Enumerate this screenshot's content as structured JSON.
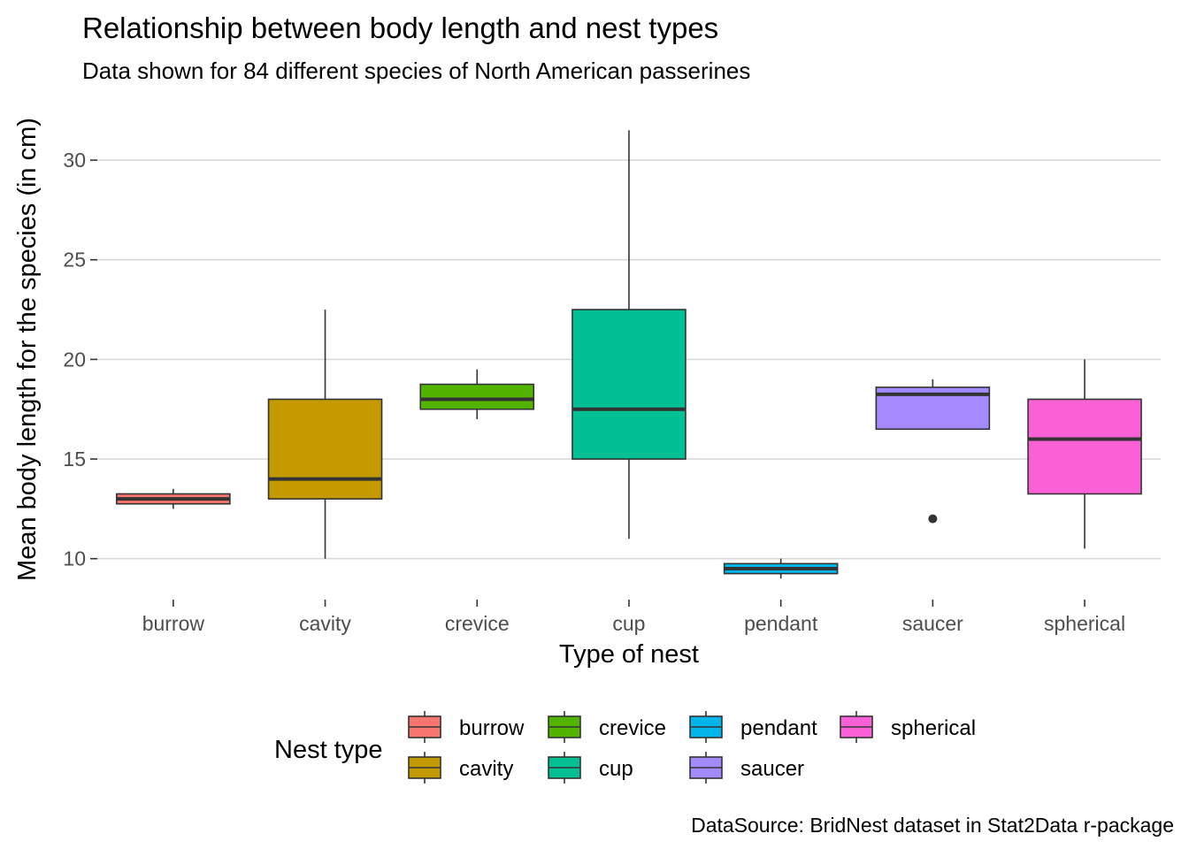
{
  "chart_data": {
    "type": "boxplot",
    "title": "Relationship between body length and nest types",
    "subtitle": "Data shown for 84 different species of North American passerines",
    "xlabel": "Type of nest",
    "ylabel": "Mean body length for the species (in cm)",
    "caption": "DataSource: BridNest dataset in Stat2Data r-package",
    "ylim": [
      8.3,
      32.8
    ],
    "yticks": [
      "10",
      "15",
      "20",
      "25",
      "30"
    ],
    "grid": "horizontal",
    "legend": {
      "title": "Nest type",
      "position": "bottom"
    },
    "categories": [
      "burrow",
      "cavity",
      "crevice",
      "cup",
      "pendant",
      "saucer",
      "spherical"
    ],
    "boxes": [
      {
        "category": "burrow",
        "min": 12.5,
        "q1": 12.75,
        "median": 13.0,
        "q3": 13.25,
        "max": 13.5,
        "outliers": [],
        "color": "#F8766D"
      },
      {
        "category": "cavity",
        "min": 10.0,
        "q1": 13.0,
        "median": 14.0,
        "q3": 18.0,
        "max": 22.5,
        "outliers": [],
        "color": "#C49A00"
      },
      {
        "category": "crevice",
        "min": 17.0,
        "q1": 17.5,
        "median": 18.0,
        "q3": 18.75,
        "max": 19.5,
        "outliers": [],
        "color": "#53B400"
      },
      {
        "category": "cup",
        "min": 11.0,
        "q1": 15.0,
        "median": 17.5,
        "q3": 22.5,
        "max": 31.5,
        "outliers": [],
        "color": "#00C094"
      },
      {
        "category": "pendant",
        "min": 9.0,
        "q1": 9.25,
        "median": 9.5,
        "q3": 9.75,
        "max": 10.0,
        "outliers": [],
        "color": "#00B6EB"
      },
      {
        "category": "saucer",
        "min": 16.5,
        "q1": 16.5,
        "median": 18.25,
        "q3": 18.6,
        "max": 19.0,
        "outliers": [
          12.0
        ],
        "color": "#A58AFF"
      },
      {
        "category": "spherical",
        "min": 10.5,
        "q1": 13.25,
        "median": 16.0,
        "q3": 18.0,
        "max": 20.0,
        "outliers": [],
        "color": "#FB61D7"
      }
    ]
  }
}
